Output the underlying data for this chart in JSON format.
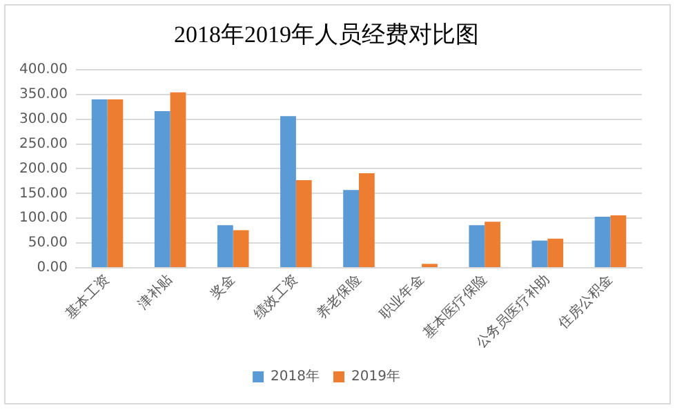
{
  "chart_data": {
    "type": "bar",
    "title": "2018年2019年人员经费对比图",
    "categories": [
      "基本工资",
      "津补贴",
      "奖金",
      "绩效工资",
      "养老保险",
      "职业年金",
      "基本医疗保险",
      "公务员医疗补助",
      "住房公积金"
    ],
    "series": [
      {
        "name": "2018年",
        "color": "#5b9bd5",
        "values": [
          340,
          316,
          86,
          306,
          157,
          null,
          86,
          55,
          103
        ]
      },
      {
        "name": "2019年",
        "color": "#ed7d31",
        "values": [
          340,
          354,
          76,
          177,
          191,
          8,
          93,
          59,
          106
        ]
      }
    ],
    "ylim": [
      0,
      400
    ],
    "yticks": [
      {
        "value": 0,
        "label": "0.00"
      },
      {
        "value": 50,
        "label": "50.00"
      },
      {
        "value": 100,
        "label": "100.00"
      },
      {
        "value": 150,
        "label": "150.00"
      },
      {
        "value": 200,
        "label": "200.00"
      },
      {
        "value": 250,
        "label": "250.00"
      },
      {
        "value": 300,
        "label": "300.00"
      },
      {
        "value": 350,
        "label": "350.00"
      },
      {
        "value": 400,
        "label": "400.00"
      }
    ],
    "grid": "y",
    "legend": "bottom"
  }
}
